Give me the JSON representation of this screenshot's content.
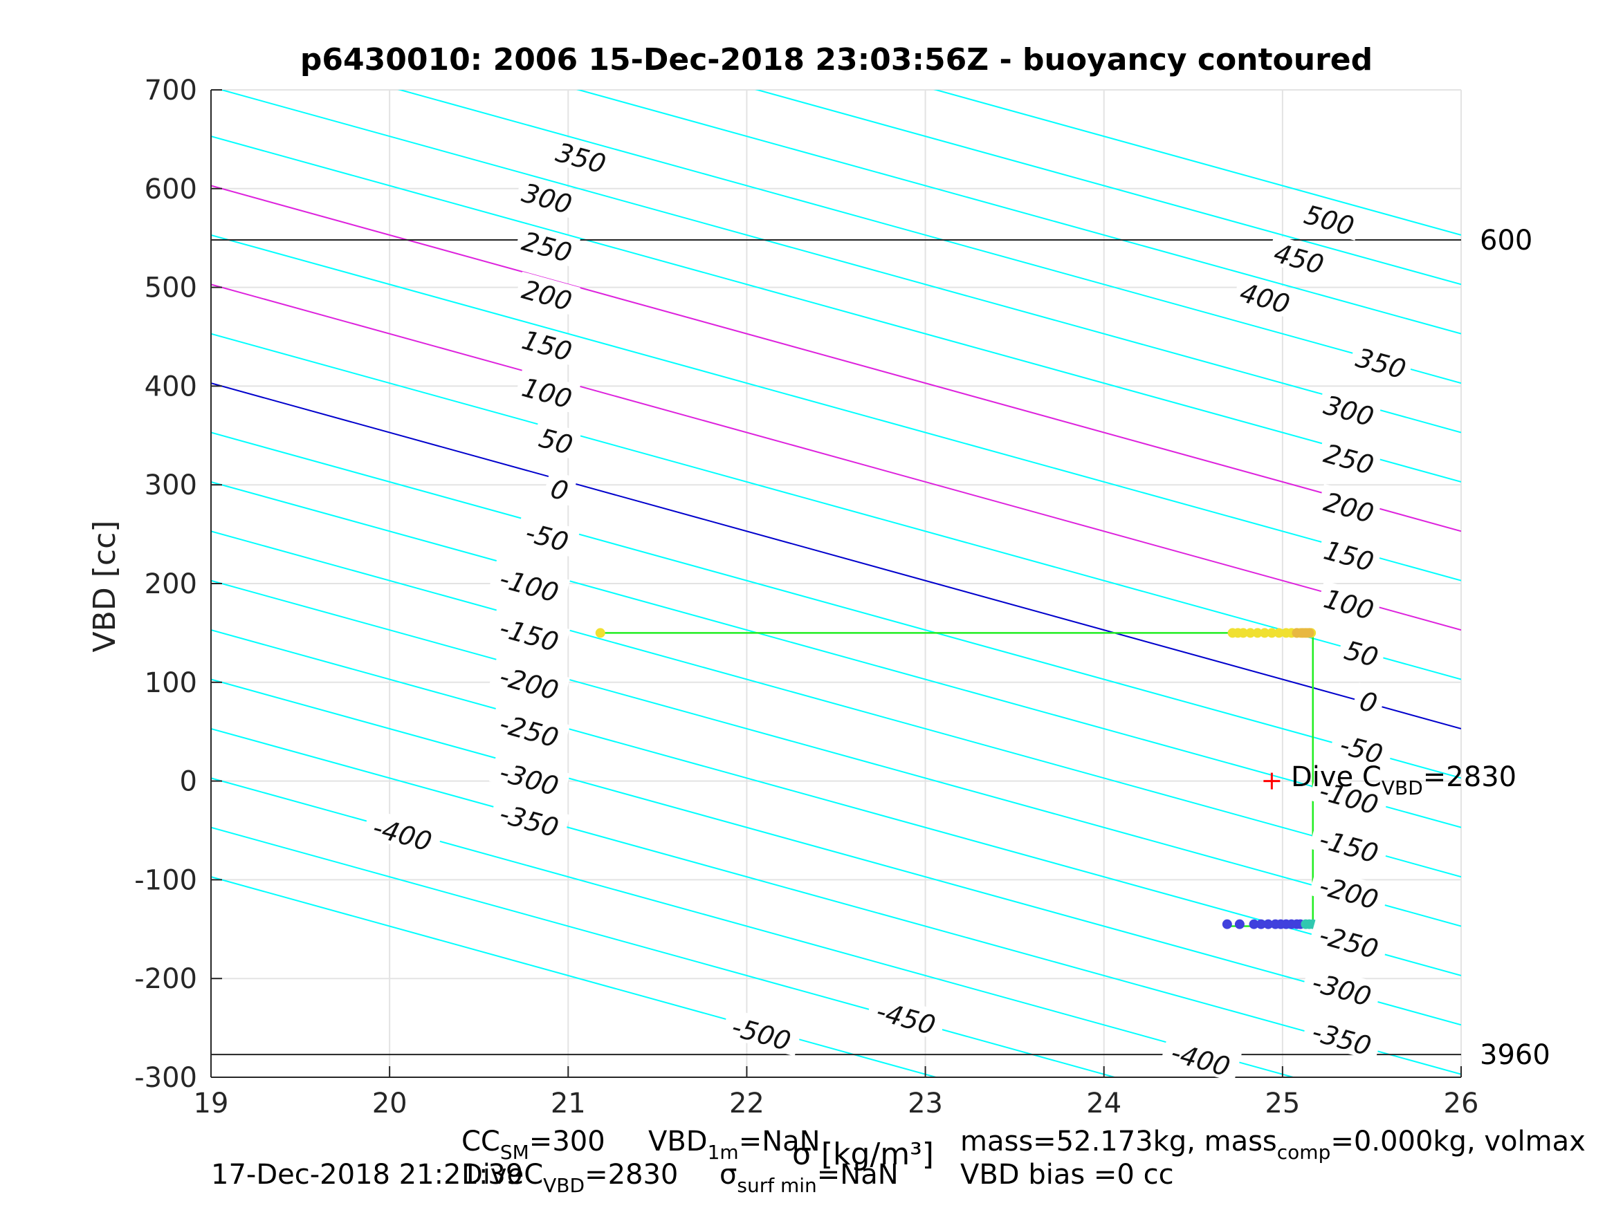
{
  "chart_data": {
    "type": "contour",
    "title": "p6430010:  2006 15-Dec-2018 23:03:56Z - buoyancy contoured",
    "xlabel": "σ [kg/m³]",
    "ylabel": "VBD [cc]",
    "xlim": [
      19,
      26
    ],
    "ylim": [
      -300,
      700
    ],
    "xticks": [
      19,
      20,
      21,
      22,
      23,
      24,
      25,
      26
    ],
    "yticks": [
      -300,
      -200,
      -100,
      0,
      100,
      200,
      300,
      400,
      500,
      600,
      700
    ],
    "grid": true,
    "contours": {
      "levels": [
        -500,
        -450,
        -400,
        -350,
        -300,
        -250,
        -200,
        -150,
        -100,
        -50,
        0,
        50,
        100,
        150,
        200,
        250,
        300,
        350,
        400,
        450,
        500
      ],
      "vbd_intercept_at_x19": 403,
      "vbd_slope_per_kgm3": -50.0,
      "vbd_per_level_step": 50,
      "default_color": "#00ffff",
      "zero_color": "#0000cc",
      "highlight_levels": [
        100,
        200
      ],
      "highlight_color": "#dd22dd",
      "left_labels": [
        {
          "text": "350",
          "x": 21.07,
          "y": 630
        },
        {
          "text": "300",
          "x": 20.88,
          "y": 589
        },
        {
          "text": "250",
          "x": 20.88,
          "y": 540
        },
        {
          "text": "200",
          "x": 20.88,
          "y": 491
        },
        {
          "text": "150",
          "x": 20.88,
          "y": 440
        },
        {
          "text": "100",
          "x": 20.88,
          "y": 392
        },
        {
          "text": "50",
          "x": 20.93,
          "y": 343
        },
        {
          "text": "0",
          "x": 20.95,
          "y": 294
        },
        {
          "text": "-50",
          "x": 20.88,
          "y": 246
        },
        {
          "text": "-100",
          "x": 20.78,
          "y": 197
        },
        {
          "text": "-150",
          "x": 20.78,
          "y": 147
        },
        {
          "text": "-200",
          "x": 20.78,
          "y": 98
        },
        {
          "text": "-250",
          "x": 20.78,
          "y": 50
        },
        {
          "text": "-300",
          "x": 20.78,
          "y": 1
        },
        {
          "text": "-350",
          "x": 20.78,
          "y": -41
        },
        {
          "text": "-400",
          "x": 20.07,
          "y": -55
        },
        {
          "text": "-500",
          "x": 22.08,
          "y": -257
        },
        {
          "text": "-450",
          "x": 22.89,
          "y": -241
        },
        {
          "text": "-400",
          "x": 24.54,
          "y": -283
        }
      ],
      "right_labels": [
        {
          "text": "500",
          "x": 25.26,
          "y": 567
        },
        {
          "text": "450",
          "x": 25.09,
          "y": 528
        },
        {
          "text": "400",
          "x": 24.9,
          "y": 488
        },
        {
          "text": "350",
          "x": 25.55,
          "y": 422
        },
        {
          "text": "300",
          "x": 25.37,
          "y": 374
        },
        {
          "text": "250",
          "x": 25.37,
          "y": 325
        },
        {
          "text": "200",
          "x": 25.37,
          "y": 276
        },
        {
          "text": "150",
          "x": 25.37,
          "y": 227
        },
        {
          "text": "100",
          "x": 25.37,
          "y": 178
        },
        {
          "text": "50",
          "x": 25.44,
          "y": 128
        },
        {
          "text": "0",
          "x": 25.48,
          "y": 79
        },
        {
          "text": "-50",
          "x": 25.44,
          "y": 31
        },
        {
          "text": "-100",
          "x": 25.37,
          "y": -18
        },
        {
          "text": "-150",
          "x": 25.37,
          "y": -67
        },
        {
          "text": "-200",
          "x": 25.37,
          "y": -114
        },
        {
          "text": "-250",
          "x": 25.37,
          "y": -164
        },
        {
          "text": "-300",
          "x": 25.33,
          "y": -212
        },
        {
          "text": "-350",
          "x": 25.33,
          "y": -262
        }
      ]
    },
    "reference_lines": [
      {
        "y": 548,
        "label": "600"
      },
      {
        "y": -277,
        "label": "3960"
      }
    ],
    "series": [
      {
        "type": "line",
        "color": "#22ee22",
        "x": [
          21.18,
          25.17,
          25.17,
          24.7,
          25.17
        ],
        "y": [
          150,
          150,
          -147,
          -147,
          -147
        ]
      },
      {
        "type": "scatter",
        "color": "#f0e030",
        "x": [
          21.18,
          24.72,
          24.75,
          24.78,
          24.82,
          24.86,
          24.9,
          24.94,
          24.98,
          25.02,
          25.05,
          25.08,
          25.1,
          25.12,
          25.14,
          25.15,
          25.16
        ],
        "y": [
          150,
          150,
          150,
          150,
          150,
          150,
          150,
          150,
          150,
          150,
          150,
          150,
          150,
          150,
          150,
          150,
          150
        ]
      },
      {
        "type": "scatter",
        "color": "#e8b840",
        "x": [
          25.08,
          25.11,
          25.13,
          25.15
        ],
        "y": [
          150,
          150,
          150,
          150
        ]
      },
      {
        "type": "scatter",
        "color": "#4040dd",
        "x": [
          24.69,
          24.76,
          24.84,
          24.88,
          24.92,
          24.96,
          24.99,
          25.02,
          25.05,
          25.08,
          25.1
        ],
        "y": [
          -145,
          -145,
          -145,
          -145,
          -145,
          -145,
          -145,
          -145,
          -145,
          -145,
          -145
        ]
      },
      {
        "type": "scatter",
        "color": "#30c8b0",
        "x": [
          25.13,
          25.15,
          25.17
        ],
        "y": [
          -145,
          -145,
          -145
        ]
      }
    ],
    "marker": {
      "x": 24.94,
      "y": 0,
      "symbol": "+",
      "color": "#ff0000"
    },
    "marker_label": {
      "prefix": "Dive C",
      "subscript": "VBD",
      "suffix": "=2830"
    }
  },
  "footer": {
    "cc_line": {
      "pre": "CC",
      "sub": "SM",
      "post": "=300"
    },
    "vbd_line": {
      "pre": "VBD",
      "sub": "1m",
      "post": "=NaN"
    },
    "divec_line": {
      "pre": "DiveC",
      "sub": "VBD",
      "post": "=2830"
    },
    "sigma_line": {
      "pre": "σ",
      "sub": "surf min",
      "post": "=NaN"
    },
    "mass_line": {
      "pre": "mass=52.173kg, mass",
      "sub": "comp",
      "post": "=0.000kg, volmax"
    },
    "bias_line": "VBD bias =0 cc",
    "timestamp": "17-Dec-2018 21:21:39"
  }
}
